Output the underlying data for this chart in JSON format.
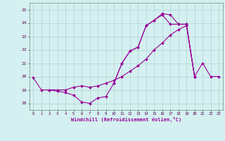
{
  "xlabel": "Windchill (Refroidissement éolien,°C)",
  "background_color": "#d4f0f0",
  "line_color": "#990099",
  "grid_color": "#aacccc",
  "hours": [
    0,
    1,
    2,
    3,
    4,
    5,
    6,
    7,
    8,
    9,
    10,
    11,
    12,
    13,
    14,
    15,
    16,
    17,
    18,
    19,
    20,
    21,
    22,
    23
  ],
  "line1": [
    19.9,
    19.0,
    19.0,
    18.9,
    18.8,
    18.6,
    18.1,
    18.0,
    18.4,
    18.5,
    19.5,
    21.0,
    21.9,
    22.2,
    23.8,
    24.2,
    24.7,
    24.6,
    23.9,
    23.9,
    20.0,
    null,
    null,
    null
  ],
  "line2": [
    null,
    null,
    19.0,
    19.0,
    19.0,
    19.2,
    19.3,
    19.2,
    19.3,
    19.5,
    19.7,
    20.0,
    20.4,
    20.8,
    21.3,
    22.0,
    22.5,
    23.1,
    23.5,
    23.8,
    20.0,
    null,
    null,
    null
  ],
  "line3": [
    null,
    null,
    null,
    null,
    null,
    null,
    null,
    null,
    null,
    null,
    19.5,
    21.0,
    21.9,
    22.2,
    23.8,
    24.2,
    24.6,
    23.9,
    23.9,
    23.9,
    20.0,
    21.0,
    20.0,
    20.0
  ],
  "ylim": [
    17.5,
    25.5
  ],
  "yticks": [
    18,
    19,
    20,
    21,
    22,
    23,
    24,
    25
  ],
  "xlim": [
    -0.5,
    23.5
  ]
}
